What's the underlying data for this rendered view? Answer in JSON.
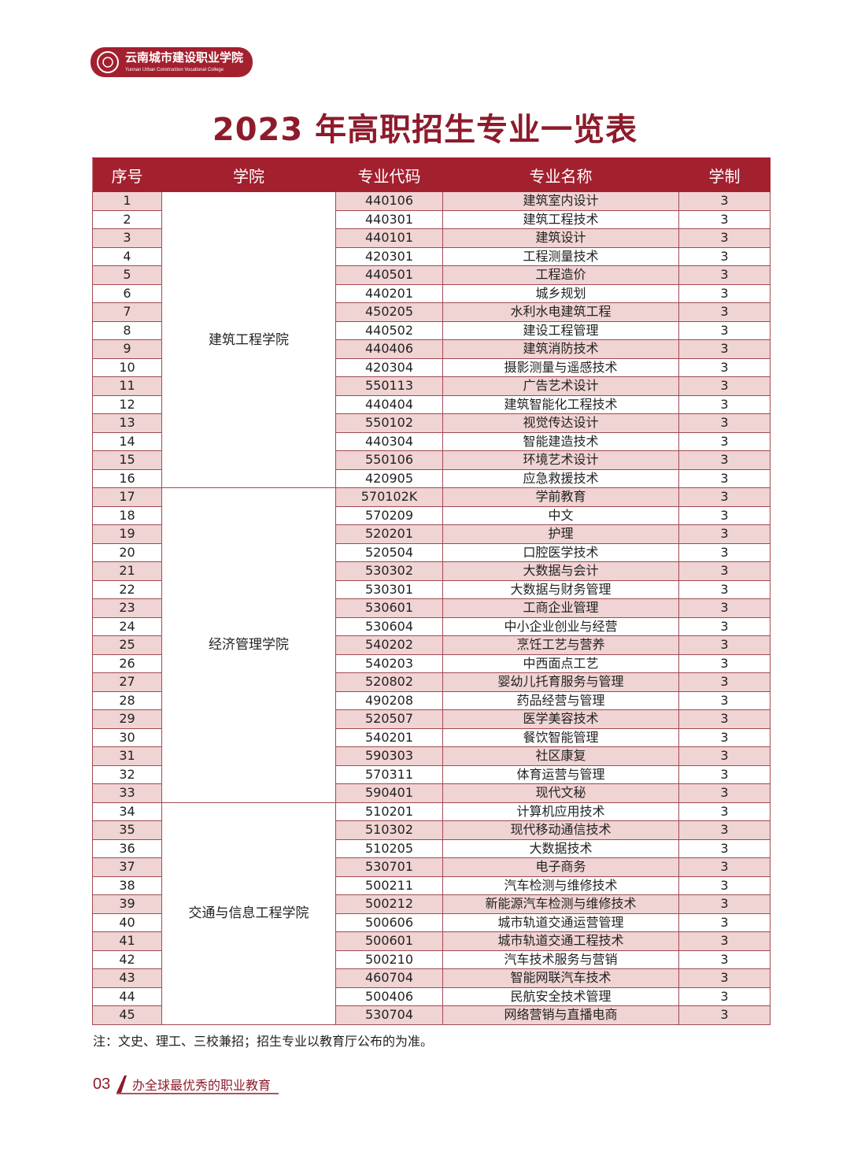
{
  "logo": {
    "name": "云南城市建设职业学院",
    "english": "Yunnan Urban Construction Vocational College"
  },
  "title": "2023 年高职招生专业一览表",
  "table": {
    "header": [
      "序号",
      "学院",
      "专业代码",
      "专业名称",
      "学制"
    ],
    "colleges": [
      {
        "name": "建筑工程学院",
        "rows": [
          [
            1,
            "440106",
            "建筑室内设计",
            3
          ],
          [
            2,
            "440301",
            "建筑工程技术",
            3
          ],
          [
            3,
            "440101",
            "建筑设计",
            3
          ],
          [
            4,
            "420301",
            "工程测量技术",
            3
          ],
          [
            5,
            "440501",
            "工程造价",
            3
          ],
          [
            6,
            "440201",
            "城乡规划",
            3
          ],
          [
            7,
            "450205",
            "水利水电建筑工程",
            3
          ],
          [
            8,
            "440502",
            "建设工程管理",
            3
          ],
          [
            9,
            "440406",
            "建筑消防技术",
            3
          ],
          [
            10,
            "420304",
            "摄影测量与遥感技术",
            3
          ],
          [
            11,
            "550113",
            "广告艺术设计",
            3
          ],
          [
            12,
            "440404",
            "建筑智能化工程技术",
            3
          ],
          [
            13,
            "550102",
            "视觉传达设计",
            3
          ],
          [
            14,
            "440304",
            "智能建造技术",
            3
          ],
          [
            15,
            "550106",
            "环境艺术设计",
            3
          ],
          [
            16,
            "420905",
            "应急救援技术",
            3
          ]
        ]
      },
      {
        "name": "经济管理学院",
        "rows": [
          [
            17,
            "570102K",
            "学前教育",
            3
          ],
          [
            18,
            "570209",
            "中文",
            3
          ],
          [
            19,
            "520201",
            "护理",
            3
          ],
          [
            20,
            "520504",
            "口腔医学技术",
            3
          ],
          [
            21,
            "530302",
            "大数据与会计",
            3
          ],
          [
            22,
            "530301",
            "大数据与财务管理",
            3
          ],
          [
            23,
            "530601",
            "工商企业管理",
            3
          ],
          [
            24,
            "530604",
            "中小企业创业与经营",
            3
          ],
          [
            25,
            "540202",
            "烹饪工艺与营养",
            3
          ],
          [
            26,
            "540203",
            "中西面点工艺",
            3
          ],
          [
            27,
            "520802",
            "婴幼儿托育服务与管理",
            3
          ],
          [
            28,
            "490208",
            "药品经营与管理",
            3
          ],
          [
            29,
            "520507",
            "医学美容技术",
            3
          ],
          [
            30,
            "540201",
            "餐饮智能管理",
            3
          ],
          [
            31,
            "590303",
            "社区康复",
            3
          ],
          [
            32,
            "570311",
            "体育运营与管理",
            3
          ],
          [
            33,
            "590401",
            "现代文秘",
            3
          ]
        ]
      },
      {
        "name": "交通与信息工程学院",
        "rows": [
          [
            34,
            "510201",
            "计算机应用技术",
            3
          ],
          [
            35,
            "510302",
            "现代移动通信技术",
            3
          ],
          [
            36,
            "510205",
            "大数据技术",
            3
          ],
          [
            37,
            "530701",
            "电子商务",
            3
          ],
          [
            38,
            "500211",
            "汽车检测与维修技术",
            3
          ],
          [
            39,
            "500212",
            "新能源汽车检测与维修技术",
            3
          ],
          [
            40,
            "500606",
            "城市轨道交通运营管理",
            3
          ],
          [
            41,
            "500601",
            "城市轨道交通工程技术",
            3
          ],
          [
            42,
            "500210",
            "汽车技术服务与营销",
            3
          ],
          [
            43,
            "460704",
            "智能网联汽车技术",
            3
          ],
          [
            44,
            "500406",
            "民航安全技术管理",
            3
          ],
          [
            45,
            "530704",
            "网络营销与直播电商",
            3
          ]
        ]
      }
    ]
  },
  "note": "注：文史、理工、三校兼招；招生专业以教育厅公布的为准。",
  "footer": {
    "page": "03",
    "slogan": "办全球最优秀的职业教育"
  }
}
